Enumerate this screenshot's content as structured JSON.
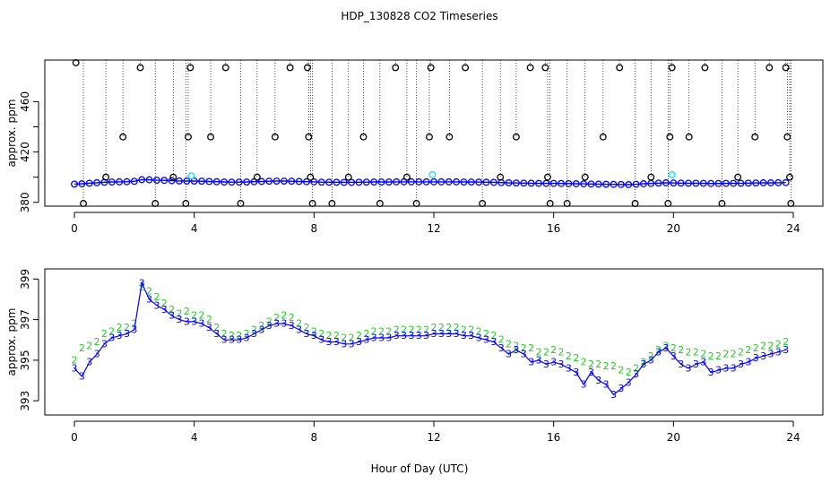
{
  "title": "HDP_130828  CO2 Timeseries",
  "x_axis_label": "Hour of Day (UTC)",
  "colors": {
    "black": "#000000",
    "blue": "#0000ff",
    "cyan": "#00e5ee",
    "green": "#22cc22"
  },
  "chart_data": [
    {
      "type": "scatter",
      "ylabel": "approx. ppm",
      "xlim": [
        0,
        24
      ],
      "ylim": [
        377,
        493
      ],
      "x_ticks": [
        0,
        4,
        8,
        12,
        16,
        20,
        24
      ],
      "y_ticks": [
        380,
        400,
        420,
        440,
        460
      ],
      "y_tick_labels": [
        "380",
        "",
        "420",
        "",
        "460"
      ],
      "series": [
        {
          "marker": "circle",
          "color": "blue",
          "x": [
            0.0,
            0.25,
            0.5,
            0.75,
            1.0,
            1.25,
            1.5,
            1.75,
            2.0,
            2.25,
            2.5,
            2.75,
            3.0,
            3.25,
            3.5,
            3.75,
            4.0,
            4.25,
            4.5,
            4.75,
            5.0,
            5.25,
            5.5,
            5.75,
            6.0,
            6.25,
            6.5,
            6.75,
            7.0,
            7.25,
            7.5,
            7.75,
            8.0,
            8.25,
            8.5,
            8.75,
            9.0,
            9.25,
            9.5,
            9.75,
            10.0,
            10.25,
            10.5,
            10.75,
            11.0,
            11.25,
            11.5,
            11.75,
            12.0,
            12.25,
            12.5,
            12.75,
            13.0,
            13.25,
            13.5,
            13.75,
            14.0,
            14.25,
            14.5,
            14.75,
            15.0,
            15.25,
            15.5,
            15.75,
            16.0,
            16.25,
            16.5,
            16.75,
            17.0,
            17.25,
            17.5,
            17.75,
            18.0,
            18.25,
            18.5,
            18.75,
            19.0,
            19.25,
            19.5,
            19.75,
            20.0,
            20.25,
            20.5,
            20.75,
            21.0,
            21.25,
            21.5,
            21.75,
            22.0,
            22.25,
            22.5,
            22.75,
            23.0,
            23.25,
            23.5,
            23.75
          ],
          "y": [
            394.5,
            394.8,
            395.2,
            395.6,
            396.0,
            396.2,
            396.3,
            396.4,
            396.7,
            398.0,
            397.9,
            397.6,
            397.5,
            397.2,
            397.0,
            396.9,
            396.9,
            396.8,
            396.6,
            396.4,
            396.2,
            396.1,
            396.1,
            396.2,
            396.4,
            396.6,
            396.8,
            396.9,
            396.9,
            396.8,
            396.6,
            396.4,
            396.3,
            396.1,
            396.0,
            396.0,
            395.9,
            395.9,
            396.0,
            396.1,
            396.2,
            396.2,
            396.2,
            396.3,
            396.3,
            396.3,
            396.3,
            396.3,
            396.3,
            396.3,
            396.3,
            396.3,
            396.2,
            396.2,
            396.1,
            396.0,
            395.9,
            395.7,
            395.5,
            395.4,
            395.3,
            395.2,
            395.1,
            395.1,
            395.1,
            395.0,
            394.9,
            394.8,
            394.7,
            394.6,
            394.5,
            394.4,
            394.3,
            394.2,
            394.1,
            394.4,
            394.8,
            395.0,
            395.3,
            395.5,
            395.4,
            395.3,
            395.2,
            395.2,
            395.1,
            395.0,
            395.0,
            395.1,
            395.1,
            395.2,
            395.3,
            395.4,
            395.5,
            395.5,
            395.6,
            395.7
          ]
        },
        {
          "marker": "circle",
          "color": "cyan",
          "x": [
            3.9,
            11.95,
            19.95
          ],
          "y": [
            401,
            402,
            402
          ]
        },
        {
          "marker": "circle",
          "color": "black",
          "x": [
            0.05,
            0.3,
            1.05,
            1.62,
            2.2,
            2.7,
            3.3,
            3.72,
            3.8,
            3.87,
            4.55,
            5.05,
            5.55,
            6.1,
            6.7,
            7.2,
            7.78,
            7.82,
            7.88,
            7.95,
            8.6,
            9.15,
            9.65,
            10.2,
            10.72,
            11.1,
            11.42,
            11.85,
            11.9,
            12.52,
            13.05,
            13.62,
            14.22,
            14.75,
            15.22,
            15.72,
            15.8,
            15.88,
            16.45,
            17.05,
            17.65,
            18.2,
            18.72,
            19.25,
            19.82,
            19.88,
            19.95,
            20.52,
            21.05,
            21.62,
            22.15,
            22.72,
            23.2,
            23.75,
            23.8,
            23.88,
            23.92
          ],
          "y": [
            493,
            378,
            400,
            432,
            487,
            378,
            400,
            378,
            432,
            487,
            432,
            487,
            378,
            400,
            432,
            487,
            487,
            432,
            400,
            378,
            378,
            400,
            432,
            378,
            487,
            400,
            378,
            432,
            487,
            432,
            487,
            378,
            400,
            432,
            487,
            487,
            400,
            378,
            378,
            400,
            432,
            487,
            378,
            400,
            378,
            432,
            487,
            432,
            487,
            378,
            400,
            432,
            487,
            487,
            432,
            400,
            378
          ]
        }
      ]
    },
    {
      "type": "line",
      "ylabel": "approx. ppm",
      "xlim": [
        0,
        24
      ],
      "ylim": [
        392.3,
        399.5
      ],
      "x_ticks": [
        0,
        4,
        8,
        12,
        16,
        20,
        24
      ],
      "y_ticks": [
        393,
        395,
        397,
        399
      ],
      "y_tick_labels": [
        "393",
        "395",
        "397",
        "399"
      ],
      "series": [
        {
          "marker": "text",
          "label": "2",
          "color": "green",
          "x": [
            0.0,
            0.25,
            0.5,
            0.75,
            1.0,
            1.25,
            1.5,
            1.75,
            2.0,
            2.25,
            2.5,
            2.75,
            3.0,
            3.25,
            3.5,
            3.75,
            4.0,
            4.25,
            4.5,
            4.75,
            5.0,
            5.25,
            5.5,
            5.75,
            6.0,
            6.25,
            6.5,
            6.75,
            7.0,
            7.25,
            7.5,
            7.75,
            8.0,
            8.25,
            8.5,
            8.75,
            9.0,
            9.25,
            9.5,
            9.75,
            10.0,
            10.25,
            10.5,
            10.75,
            11.0,
            11.25,
            11.5,
            11.75,
            12.0,
            12.25,
            12.5,
            12.75,
            13.0,
            13.25,
            13.5,
            13.75,
            14.0,
            14.25,
            14.5,
            14.75,
            15.0,
            15.25,
            15.5,
            15.75,
            16.0,
            16.25,
            16.5,
            16.75,
            17.0,
            17.25,
            17.5,
            17.75,
            18.0,
            18.25,
            18.5,
            18.75,
            19.0,
            19.25,
            19.5,
            19.75,
            20.0,
            20.25,
            20.5,
            20.75,
            21.0,
            21.25,
            21.5,
            21.75,
            22.0,
            22.25,
            22.5,
            22.75,
            23.0,
            23.25,
            23.5,
            23.75
          ],
          "y": [
            395.0,
            395.6,
            395.7,
            395.9,
            396.3,
            396.4,
            396.6,
            396.6,
            396.8,
            398.6,
            398.4,
            398.1,
            397.8,
            397.5,
            397.3,
            397.4,
            397.2,
            397.2,
            397.0,
            396.6,
            396.3,
            396.2,
            396.2,
            396.3,
            396.5,
            396.7,
            396.9,
            397.1,
            397.2,
            397.1,
            396.8,
            396.6,
            396.4,
            396.3,
            396.2,
            396.2,
            396.1,
            396.1,
            396.2,
            396.3,
            396.4,
            396.4,
            396.4,
            396.5,
            396.5,
            396.5,
            396.5,
            396.5,
            396.6,
            396.6,
            396.6,
            396.6,
            396.5,
            396.5,
            396.4,
            396.3,
            396.2,
            396.0,
            395.8,
            395.7,
            395.6,
            395.6,
            395.4,
            395.4,
            395.5,
            395.4,
            395.2,
            395.1,
            394.9,
            394.8,
            394.8,
            394.7,
            394.7,
            394.5,
            394.4,
            394.6,
            394.9,
            395.2,
            395.5,
            395.7,
            395.6,
            395.5,
            395.4,
            395.4,
            395.3,
            395.2,
            395.2,
            395.3,
            395.3,
            395.4,
            395.5,
            395.6,
            395.7,
            395.7,
            395.8,
            395.9
          ]
        },
        {
          "marker": "text",
          "label": "3",
          "color": "blue",
          "x": [
            0.0,
            0.25,
            0.5,
            0.75,
            1.0,
            1.25,
            1.5,
            1.75,
            2.0,
            2.25,
            2.5,
            2.75,
            3.0,
            3.25,
            3.5,
            3.75,
            4.0,
            4.25,
            4.5,
            4.75,
            5.0,
            5.25,
            5.5,
            5.75,
            6.0,
            6.25,
            6.5,
            6.75,
            7.0,
            7.25,
            7.5,
            7.75,
            8.0,
            8.25,
            8.5,
            8.75,
            9.0,
            9.25,
            9.5,
            9.75,
            10.0,
            10.25,
            10.5,
            10.75,
            11.0,
            11.25,
            11.5,
            11.75,
            12.0,
            12.25,
            12.5,
            12.75,
            13.0,
            13.25,
            13.5,
            13.75,
            14.0,
            14.25,
            14.5,
            14.75,
            15.0,
            15.25,
            15.5,
            15.75,
            16.0,
            16.25,
            16.5,
            16.75,
            17.0,
            17.25,
            17.5,
            17.75,
            18.0,
            18.25,
            18.5,
            18.75,
            19.0,
            19.25,
            19.5,
            19.75,
            20.0,
            20.25,
            20.5,
            20.75,
            21.0,
            21.25,
            21.5,
            21.75,
            22.0,
            22.25,
            22.5,
            22.75,
            23.0,
            23.25,
            23.5,
            23.75
          ],
          "y": [
            394.6,
            394.2,
            394.9,
            395.3,
            395.8,
            396.1,
            396.2,
            396.3,
            396.5,
            398.8,
            398.0,
            397.7,
            397.5,
            397.2,
            397.0,
            396.9,
            396.9,
            396.8,
            396.6,
            396.3,
            396.0,
            396.0,
            396.0,
            396.1,
            396.3,
            396.5,
            396.7,
            396.8,
            396.8,
            396.7,
            396.5,
            396.3,
            396.2,
            396.0,
            395.9,
            395.9,
            395.8,
            395.8,
            395.9,
            396.0,
            396.1,
            396.1,
            396.1,
            396.2,
            396.2,
            396.2,
            396.2,
            396.2,
            396.3,
            396.3,
            396.3,
            396.3,
            396.2,
            396.2,
            396.1,
            396.0,
            395.9,
            395.6,
            395.3,
            395.5,
            395.3,
            394.9,
            395.0,
            394.8,
            394.9,
            394.8,
            394.6,
            394.4,
            393.8,
            394.4,
            394.0,
            393.8,
            393.3,
            393.6,
            393.9,
            394.3,
            394.8,
            395.0,
            395.4,
            395.6,
            395.2,
            394.8,
            394.6,
            394.8,
            394.9,
            394.4,
            394.5,
            394.6,
            394.6,
            394.8,
            394.9,
            395.1,
            395.2,
            395.3,
            395.4,
            395.5
          ]
        }
      ]
    }
  ]
}
